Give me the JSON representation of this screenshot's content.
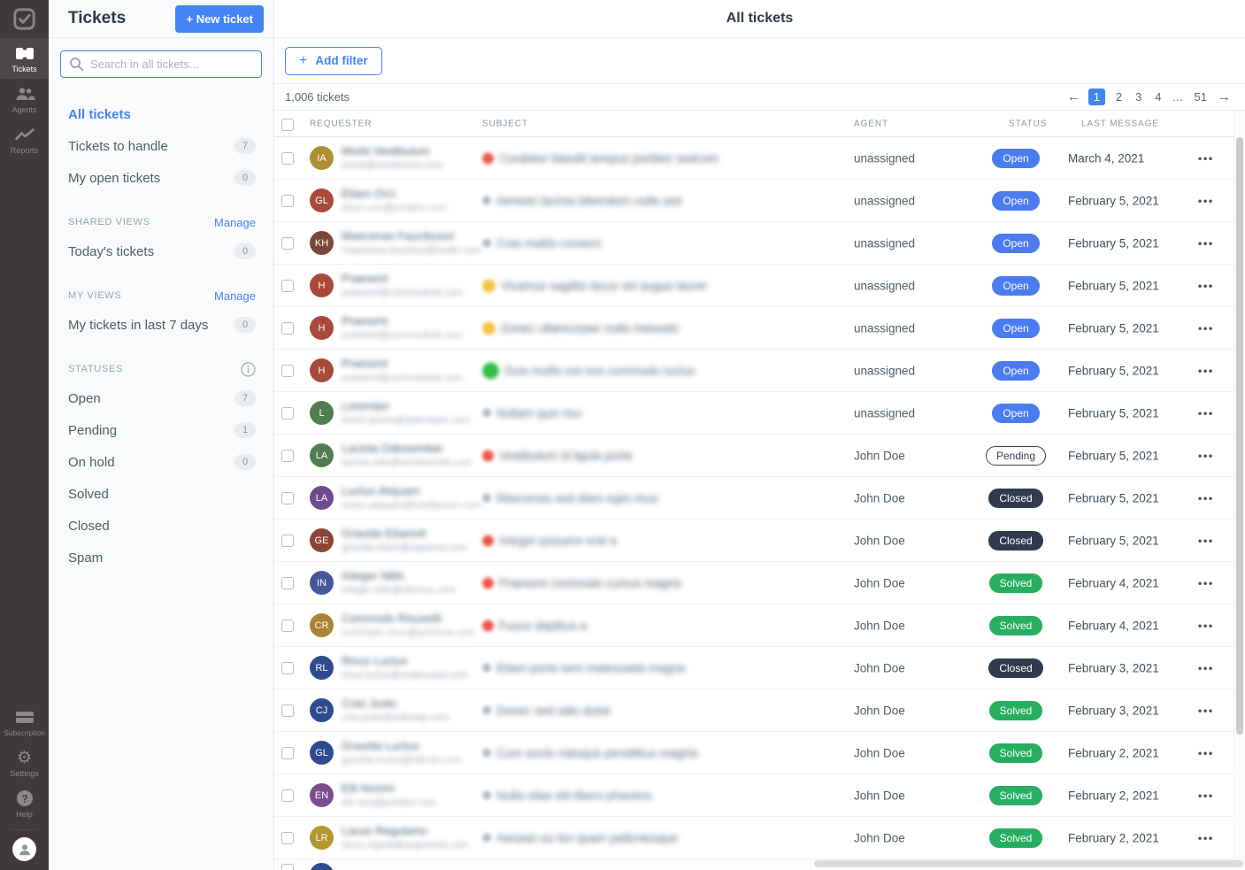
{
  "rail": {
    "top_items": [
      {
        "label": "Tickets",
        "active": true
      },
      {
        "label": "Agents",
        "active": false
      },
      {
        "label": "Reports",
        "active": false
      }
    ],
    "bottom_items": [
      {
        "label": "Subscription"
      },
      {
        "label": "Settings"
      },
      {
        "label": "Help"
      }
    ]
  },
  "sidebar": {
    "title": "Tickets",
    "new_ticket_label": "+ New ticket",
    "search_placeholder": "Search in all tickets...",
    "primary_items": [
      {
        "label": "All tickets",
        "active": true,
        "count": null
      },
      {
        "label": "Tickets to handle",
        "active": false,
        "count": "7"
      },
      {
        "label": "My open tickets",
        "active": false,
        "count": "0"
      }
    ],
    "sections": [
      {
        "heading": "SHARED VIEWS",
        "action": "Manage",
        "items": [
          {
            "label": "Today's tickets",
            "count": "0"
          }
        ]
      },
      {
        "heading": "MY VIEWS",
        "action": "Manage",
        "items": [
          {
            "label": "My tickets in last 7 days",
            "count": "0"
          }
        ]
      },
      {
        "heading": "STATUSES",
        "action": "info",
        "items": [
          {
            "label": "Open",
            "count": "7"
          },
          {
            "label": "Pending",
            "count": "1"
          },
          {
            "label": "On hold",
            "count": "0"
          },
          {
            "label": "Solved",
            "count": null
          },
          {
            "label": "Closed",
            "count": null
          },
          {
            "label": "Spam",
            "count": null
          }
        ]
      }
    ]
  },
  "main": {
    "title": "All tickets",
    "add_filter_label": "Add filter",
    "add_filter_plus": "+",
    "ticket_count": "1,006 tickets",
    "pagination": {
      "prev": "←",
      "next": "→",
      "pages": [
        "1",
        "2",
        "3",
        "4",
        "…",
        "51"
      ],
      "active_page": "1"
    },
    "columns": [
      "REQUESTER",
      "SUBJECT",
      "AGENT",
      "STATUS",
      "LAST MESSAGE"
    ],
    "row_menu_glyph": "•••"
  },
  "status_styles": {
    "Open": {
      "bg": "#4a7cf0",
      "fg": "#ffffff",
      "border": "1px solid #4a7cf0"
    },
    "Pending": {
      "bg": "#ffffff",
      "fg": "#33404f",
      "border": "1px solid #33404f"
    },
    "Closed": {
      "bg": "#303c4e",
      "fg": "#ffffff",
      "border": "1px solid #303c4e"
    },
    "Solved": {
      "bg": "#27ae60",
      "fg": "#ffffff",
      "border": "1px solid #27ae60"
    }
  },
  "emoji_styles": {
    "red": {
      "color": "#e8574b",
      "size": 13
    },
    "yellow": {
      "color": "#f2c445",
      "size": 15
    },
    "green": {
      "color": "#35c046",
      "size": 19
    },
    "gray": {
      "color": "#b2bac1",
      "size": 10
    }
  },
  "tickets": [
    {
      "initials": "IA",
      "avatar_color": "#ad9035",
      "name_blurred": "Morbi Vestibulum",
      "email_blurred": "morbi@vestibulum.com",
      "subject_blurred": "Curabitur blandit tempus porttitor sedcom",
      "subject_emoji": "red",
      "agent": "unassigned",
      "status": "Open",
      "date": "March 4, 2021"
    },
    {
      "initials": "GL",
      "avatar_color": "#a8493b",
      "name_blurred": "Etiam Orci",
      "email_blurred": "etiam.orci@porttitor.com",
      "subject_blurred": "Aenean lacinia bibendum nulla sed",
      "subject_emoji": "gray",
      "agent": "unassigned",
      "status": "Open",
      "date": "February 5, 2021"
    },
    {
      "initials": "KH",
      "avatar_color": "#7a4639",
      "name_blurred": "Maecenas Faucibusol",
      "email_blurred": "maecenas.faucibus@mollis.com",
      "subject_blurred": "Cras mattis consect",
      "subject_emoji": "gray",
      "agent": "unassigned",
      "status": "Open",
      "date": "February 5, 2021"
    },
    {
      "initials": "H",
      "avatar_color": "#a8493b",
      "name_blurred": "Praesent",
      "email_blurred": "praesent@commodosit.com",
      "subject_blurred": "Vivamus sagittis lacus vel augue laoret",
      "subject_emoji": "yellow",
      "agent": "unassigned",
      "status": "Open",
      "date": "February 5, 2021"
    },
    {
      "initials": "H",
      "avatar_color": "#a8493b",
      "name_blurred": "Praesent",
      "email_blurred": "praesent@commodosit.com",
      "subject_blurred": "Donec ullamcorper nulla metusdo",
      "subject_emoji": "yellow",
      "agent": "unassigned",
      "status": "Open",
      "date": "February 5, 2021"
    },
    {
      "initials": "H",
      "avatar_color": "#a8493b",
      "name_blurred": "Praesent",
      "email_blurred": "praesent@commodosit.com",
      "subject_blurred": "Duis mollis est non commodo luctus",
      "subject_emoji": "green",
      "agent": "unassigned",
      "status": "Open",
      "date": "February 5, 2021"
    },
    {
      "initials": "L",
      "avatar_color": "#507d4f",
      "name_blurred": "Loremips",
      "email_blurred": "lorem.ipsum@dolorsitam.com",
      "subject_blurred": "Nullam quis risu",
      "subject_emoji": "gray",
      "agent": "unassigned",
      "status": "Open",
      "date": "February 5, 2021"
    },
    {
      "initials": "LA",
      "avatar_color": "#507d4f",
      "name_blurred": "Lacinia Odiosember",
      "email_blurred": "lacinia.odio@sembernelit.com",
      "subject_blurred": "Vestibulum id ligula porta",
      "subject_emoji": "red",
      "agent": "John Doe",
      "status": "Pending",
      "date": "February 5, 2021"
    },
    {
      "initials": "LA",
      "avatar_color": "#6e4b8e",
      "name_blurred": "Luctus Aliquam",
      "email_blurred": "luctus.aliquam@vestibulum.com",
      "subject_blurred": "Maecenas sed diam eget risus",
      "subject_emoji": "gray",
      "agent": "John Doe",
      "status": "Closed",
      "date": "February 5, 2021"
    },
    {
      "initials": "GE",
      "avatar_color": "#8c4436",
      "name_blurred": "Gravida Etiamsit",
      "email_blurred": "gravida.etiam@sapienst.com",
      "subject_blurred": "Integer posuere erat a",
      "subject_emoji": "red",
      "agent": "John Doe",
      "status": "Closed",
      "date": "February 5, 2021"
    },
    {
      "initials": "IN",
      "avatar_color": "#45589b",
      "name_blurred": "Integer Nibh",
      "email_blurred": "integer.nibh@ultricies.com",
      "subject_blurred": "Praesent commodo cursus magna",
      "subject_emoji": "red",
      "agent": "John Doe",
      "status": "Solved",
      "date": "February 4, 2021"
    },
    {
      "initials": "CR",
      "avatar_color": "#ab8433",
      "name_blurred": "Commodo Risuselit",
      "email_blurred": "commodo.risus@tortorme.com",
      "subject_blurred": "Fusce dapibus a",
      "subject_emoji": "red",
      "agent": "John Doe",
      "status": "Solved",
      "date": "February 4, 2021"
    },
    {
      "initials": "RL",
      "avatar_color": "#2f4b8f",
      "name_blurred": "Risus Luctus",
      "email_blurred": "risus.luctus@malesuada.com",
      "subject_blurred": "Etiam porta sem malesuada magna",
      "subject_emoji": "gray",
      "agent": "John Doe",
      "status": "Closed",
      "date": "February 3, 2021"
    },
    {
      "initials": "CJ",
      "avatar_color": "#2f4b8f",
      "name_blurred": "Cras Justo",
      "email_blurred": "cras.justo@odiodap.com",
      "subject_blurred": "Donec sed odio duisit",
      "subject_emoji": "gray",
      "agent": "John Doe",
      "status": "Solved",
      "date": "February 3, 2021"
    },
    {
      "initials": "GL",
      "avatar_color": "#2f4b8f",
      "name_blurred": "Gravida Luctus",
      "email_blurred": "gravida.luctus@elitnon.com",
      "subject_blurred": "Cum sociis natoque penatibus magnis",
      "subject_emoji": "gray",
      "agent": "John Doe",
      "status": "Solved",
      "date": "February 2, 2021"
    },
    {
      "initials": "EN",
      "avatar_color": "#7d4b8e",
      "name_blurred": "Elit Nonmi",
      "email_blurred": "elit.non@porttitor.com",
      "subject_blurred": "Nulla vitae elit libero pharetra",
      "subject_emoji": "gray",
      "agent": "John Doe",
      "status": "Solved",
      "date": "February 2, 2021"
    },
    {
      "initials": "LR",
      "avatar_color": "#b3952f",
      "name_blurred": "Lacus Regulamo",
      "email_blurred": "lacus.regula@auguemet.com",
      "subject_blurred": "Aenean eu leo quam pellentesque",
      "subject_emoji": "gray",
      "agent": "John Doe",
      "status": "Solved",
      "date": "February 2, 2021"
    }
  ],
  "partial_row": {
    "avatar_color": "#2f4b8f"
  }
}
